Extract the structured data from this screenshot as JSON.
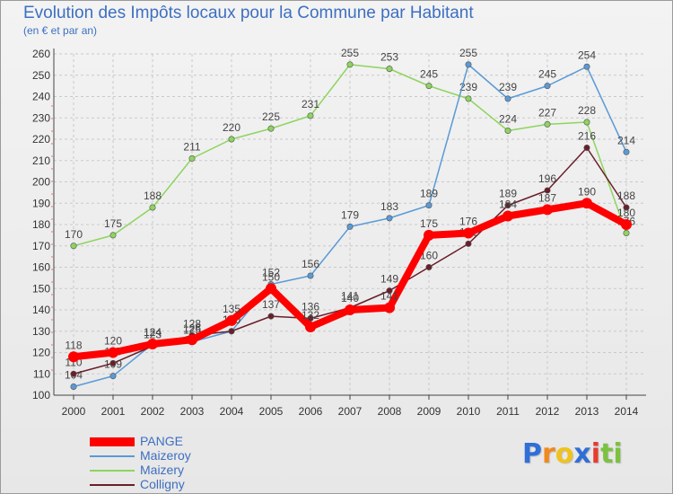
{
  "title": "Evolution des Impôts locaux pour la Commune par Habitant",
  "subtitle": "(en € et par an)",
  "logo_letters": [
    {
      "ch": "P",
      "color": "#2f6fd6"
    },
    {
      "ch": "r",
      "color": "#f08a1c"
    },
    {
      "ch": "o",
      "color": "#f0c21c"
    },
    {
      "ch": "x",
      "color": "#2f6fd6"
    },
    {
      "ch": "i",
      "color": "#e63b2e"
    },
    {
      "ch": "t",
      "color": "#7cc142"
    },
    {
      "ch": "i",
      "color": "#7cc142"
    }
  ],
  "chart_data": {
    "type": "line",
    "title": "Evolution des Impôts locaux pour la Commune par Habitant",
    "ylabel": "(en € et par an)",
    "xlabel": "",
    "ylim": [
      100,
      260
    ],
    "y_ticks": [
      100,
      110,
      120,
      130,
      140,
      150,
      160,
      170,
      180,
      190,
      200,
      210,
      220,
      230,
      240,
      250,
      260
    ],
    "categories": [
      "2000",
      "2001",
      "2002",
      "2003",
      "2004",
      "2005",
      "2006",
      "2007",
      "2008",
      "2009",
      "2010",
      "2011",
      "2012",
      "2013",
      "2014"
    ],
    "series": [
      {
        "name": "Maizery",
        "color": "#8ed45f",
        "values": [
          170,
          175,
          188,
          211,
          220,
          225,
          231,
          255,
          253,
          245,
          239,
          224,
          227,
          228,
          176
        ]
      },
      {
        "name": "Maizeroy",
        "color": "#5a9ad6",
        "values": [
          104,
          109,
          124,
          125,
          130,
          152,
          156,
          179,
          183,
          189,
          255,
          239,
          245,
          254,
          214
        ]
      },
      {
        "name": "Colligny",
        "color": "#6b1e2a",
        "values": [
          110,
          115,
          123,
          128,
          130,
          137,
          136,
          141,
          149,
          160,
          171,
          189,
          196,
          216,
          188
        ]
      },
      {
        "name": "PANGE",
        "color": "#ff0000",
        "values": [
          118,
          120,
          124,
          126,
          135,
          150,
          132,
          140,
          141,
          175,
          176,
          184,
          187,
          190,
          180
        ]
      }
    ],
    "legend": [
      "PANGE",
      "Maizeroy",
      "Maizery",
      "Colligny"
    ],
    "legend_position": "bottom-left"
  }
}
